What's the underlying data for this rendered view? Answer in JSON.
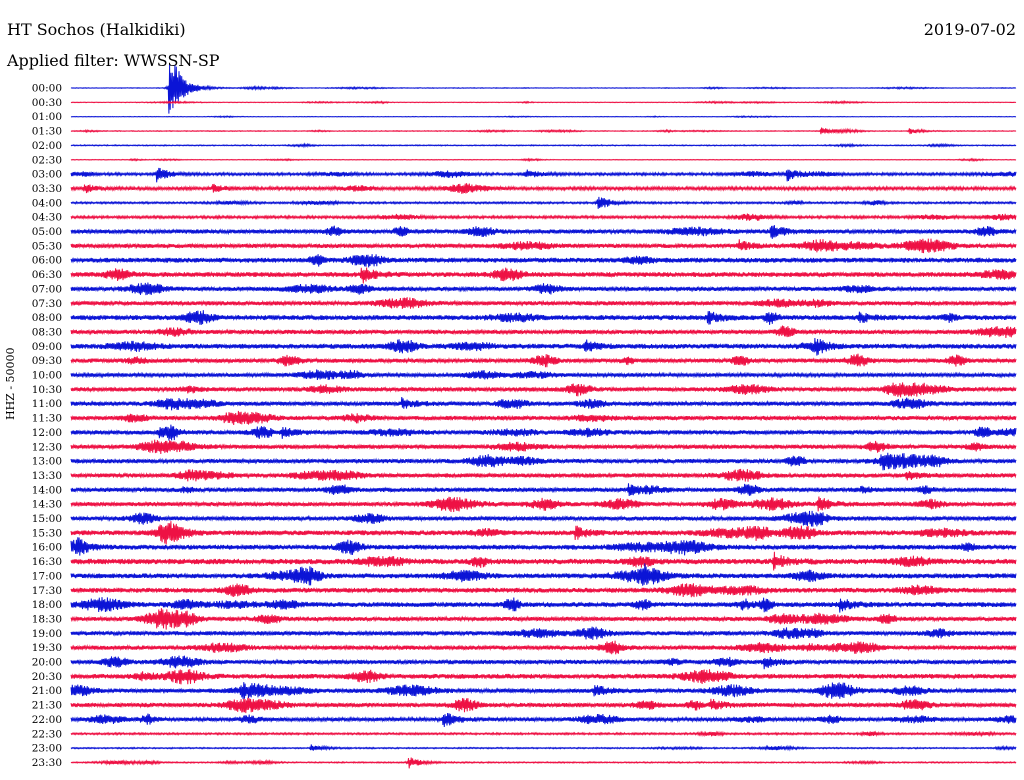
{
  "header": {
    "station": "HT Sochos (Halkidiki)",
    "date": "2019-07-02",
    "filter": "Applied filter: WWSSN-SP",
    "channel": "HHZ - 50000"
  },
  "colors": {
    "blue": "#0b14d6",
    "red": "#ee1144"
  },
  "chart_data": {
    "type": "line",
    "chart_kind": "helicorder",
    "row_labels": [
      "00:00",
      "00:30",
      "01:00",
      "01:30",
      "02:00",
      "02:30",
      "03:00",
      "03:30",
      "04:00",
      "04:30",
      "05:00",
      "05:30",
      "06:00",
      "06:30",
      "07:00",
      "07:30",
      "08:00",
      "08:30",
      "09:00",
      "09:30",
      "10:00",
      "10:30",
      "11:00",
      "11:30",
      "12:00",
      "12:30",
      "13:00",
      "13:30",
      "14:00",
      "14:30",
      "15:00",
      "15:30",
      "16:00",
      "16:30",
      "17:00",
      "17:30",
      "18:00",
      "18:30",
      "19:00",
      "19:30",
      "20:00",
      "20:30",
      "21:00",
      "21:30",
      "22:00",
      "22:30",
      "23:00",
      "23:30"
    ],
    "row_colors": [
      "blue",
      "red",
      "blue",
      "red",
      "blue",
      "red",
      "blue",
      "red",
      "blue",
      "red",
      "blue",
      "red",
      "blue",
      "red",
      "blue",
      "red",
      "blue",
      "red",
      "blue",
      "red",
      "blue",
      "red",
      "blue",
      "red",
      "blue",
      "red",
      "blue",
      "red",
      "blue",
      "red",
      "blue",
      "red",
      "blue",
      "red",
      "blue",
      "red",
      "blue",
      "red",
      "blue",
      "red",
      "blue",
      "red",
      "blue",
      "red",
      "blue",
      "red",
      "blue",
      "red"
    ],
    "row_minutes": 30,
    "noise_level": [
      0.05,
      0.05,
      0.04,
      0.06,
      0.08,
      0.05,
      0.2,
      0.25,
      0.15,
      0.2,
      0.35,
      0.35,
      0.4,
      0.4,
      0.35,
      0.35,
      0.4,
      0.35,
      0.4,
      0.35,
      0.3,
      0.35,
      0.35,
      0.35,
      0.35,
      0.35,
      0.35,
      0.35,
      0.35,
      0.35,
      0.35,
      0.4,
      0.4,
      0.45,
      0.4,
      0.4,
      0.4,
      0.35,
      0.35,
      0.35,
      0.35,
      0.4,
      0.35,
      0.35,
      0.3,
      0.15,
      0.1,
      0.1
    ],
    "events": [
      {
        "row": 0,
        "minute": 3.1,
        "amplitude": 5.0
      },
      {
        "row": 0,
        "minute": 3.3,
        "amplitude": 1.2
      },
      {
        "row": 3,
        "minute": 23.8,
        "amplitude": 0.6
      },
      {
        "row": 3,
        "minute": 26.6,
        "amplitude": 0.5
      },
      {
        "row": 6,
        "minute": 2.7,
        "amplitude": 1.3
      },
      {
        "row": 6,
        "minute": 14.4,
        "amplitude": 0.8
      },
      {
        "row": 6,
        "minute": 22.7,
        "amplitude": 1.2
      },
      {
        "row": 7,
        "minute": 0.4,
        "amplitude": 0.7
      },
      {
        "row": 7,
        "minute": 4.5,
        "amplitude": 0.6
      },
      {
        "row": 8,
        "minute": 16.7,
        "amplitude": 1.3
      },
      {
        "row": 10,
        "minute": 22.2,
        "amplitude": 1.3
      },
      {
        "row": 11,
        "minute": 21.2,
        "amplitude": 0.8
      },
      {
        "row": 13,
        "minute": 9.2,
        "amplitude": 1.4
      },
      {
        "row": 16,
        "minute": 20.2,
        "amplitude": 1.1
      },
      {
        "row": 16,
        "minute": 25.0,
        "amplitude": 0.8
      },
      {
        "row": 18,
        "minute": 16.3,
        "amplitude": 1.0
      },
      {
        "row": 18,
        "minute": 23.6,
        "amplitude": 0.9
      },
      {
        "row": 22,
        "minute": 10.5,
        "amplitude": 0.8
      },
      {
        "row": 24,
        "minute": 2.8,
        "amplitude": 0.9
      },
      {
        "row": 24,
        "minute": 6.7,
        "amplitude": 0.8
      },
      {
        "row": 26,
        "minute": 25.7,
        "amplitude": 1.1
      },
      {
        "row": 27,
        "minute": 26.5,
        "amplitude": 0.7
      },
      {
        "row": 28,
        "minute": 17.7,
        "amplitude": 0.8
      },
      {
        "row": 29,
        "minute": 23.7,
        "amplitude": 1.2
      },
      {
        "row": 31,
        "minute": 16.0,
        "amplitude": 1.0
      },
      {
        "row": 32,
        "minute": 0.2,
        "amplitude": 0.6
      },
      {
        "row": 33,
        "minute": 22.3,
        "amplitude": 1.3
      },
      {
        "row": 34,
        "minute": 18.1,
        "amplitude": 1.3
      },
      {
        "row": 36,
        "minute": 24.4,
        "amplitude": 1.0
      },
      {
        "row": 40,
        "minute": 22.0,
        "amplitude": 1.0
      },
      {
        "row": 42,
        "minute": 5.4,
        "amplitude": 0.9
      },
      {
        "row": 42,
        "minute": 16.6,
        "amplitude": 0.9
      },
      {
        "row": 43,
        "minute": 20.3,
        "amplitude": 1.0
      },
      {
        "row": 44,
        "minute": 11.8,
        "amplitude": 1.5
      },
      {
        "row": 46,
        "minute": 7.6,
        "amplitude": 0.6
      },
      {
        "row": 47,
        "minute": 10.7,
        "amplitude": 1.0
      }
    ]
  }
}
